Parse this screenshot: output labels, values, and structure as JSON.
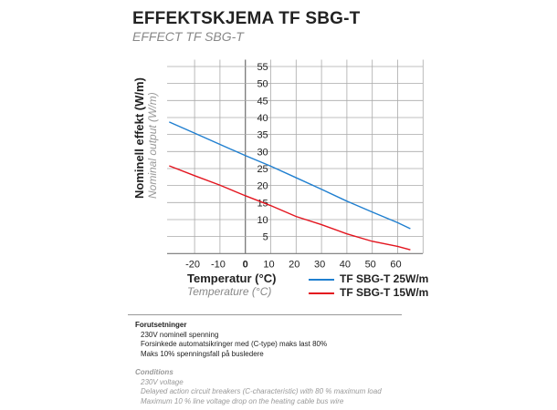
{
  "header": {
    "title": "EFFEKTSKJEMA TF SBG-T",
    "subtitle": "EFFECT TF SBG-T"
  },
  "chart_data": {
    "type": "line",
    "title": "EFFEKTSKJEMA TF SBG-T",
    "subtitle": "EFFECT TF SBG-T",
    "xlabel": "Temperatur (°C)",
    "xlabel_en": "Temperature (°C)",
    "ylabel": "Nominell effekt (W/m)",
    "ylabel_en": "Nominal output (W/m)",
    "xticks": [
      -20,
      -10,
      0,
      10,
      20,
      30,
      40,
      50,
      60
    ],
    "yticks": [
      5,
      10,
      15,
      20,
      25,
      30,
      35,
      40,
      45,
      50,
      55
    ],
    "xlim": [
      -30,
      70
    ],
    "ylim": [
      0,
      57
    ],
    "grid": true,
    "legend_position": "bottom-right",
    "x": [
      -30,
      -20,
      -10,
      0,
      10,
      20,
      30,
      40,
      50,
      60,
      65
    ],
    "series": [
      {
        "name": "TF SBG-T 25W/m",
        "color": "#1f7fd0",
        "values": [
          38.7,
          35.4,
          32.1,
          28.8,
          25.7,
          22.3,
          18.9,
          15.4,
          12.2,
          9.1,
          7.3
        ]
      },
      {
        "name": "TF SBG-T 15W/m",
        "color": "#e3141e",
        "values": [
          25.8,
          22.9,
          20.1,
          17.0,
          14.1,
          10.9,
          8.5,
          5.8,
          3.6,
          2.1,
          1.1
        ]
      }
    ]
  },
  "notes": {
    "heading": "Forutsetninger",
    "items": [
      "230V nominell spenning",
      "Forsinkede automatsikringer med (C-type) maks last 80%",
      "Maks 10% spenningsfall på busledere"
    ],
    "heading_en": "Conditions",
    "items_en": [
      "230V voltage",
      "Delayed action circuit breakers (C-characteristic) with 80 % maximum load",
      "Maximum 10 % line voltage drop on the heating cable bus wire"
    ]
  }
}
